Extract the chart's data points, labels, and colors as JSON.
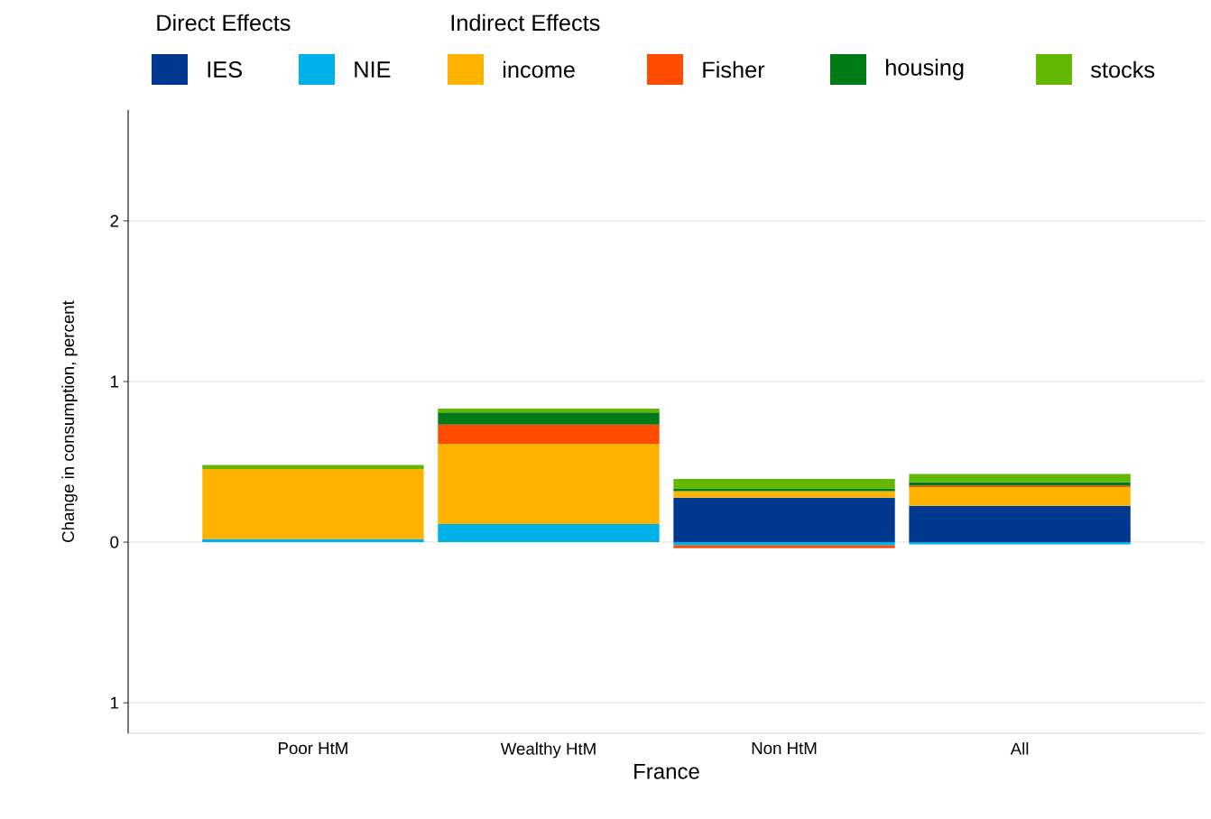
{
  "chart_data": {
    "type": "bar",
    "stacked": true,
    "xlabel": "France",
    "ylabel": "Change in consumption, percent",
    "annotations": [
      "Direct Effects",
      "Indirect Effects"
    ],
    "categories": [
      "Poor HtM",
      "Wealthy HtM",
      "Non HtM",
      "All"
    ],
    "series": [
      {
        "name": "IES",
        "color": "#00388f",
        "values": [
          0,
          0,
          0.277,
          0.226
        ]
      },
      {
        "name": "NIE",
        "color": "#00b1e9",
        "values": [
          0.02,
          0.112,
          -0.021,
          -0.014
        ]
      },
      {
        "name": "income",
        "color": "#ffb300",
        "values": [
          0.435,
          0.5,
          0.04,
          0.117
        ]
      },
      {
        "name": "Fisher",
        "color": "#ff4c00",
        "values": [
          0,
          0.12,
          -0.016,
          0.008
        ]
      },
      {
        "name": "housing",
        "color": "#007a17",
        "values": [
          0,
          0.075,
          0.018,
          0.023
        ]
      },
      {
        "name": "stocks",
        "color": "#63b700",
        "values": [
          0.025,
          0.025,
          0.058,
          0.05
        ]
      }
    ],
    "ylim": [
      -1.19,
      2.69
    ],
    "yticks": [
      {
        "value": -1,
        "label": "1"
      },
      0,
      1,
      2
    ],
    "grid": "y",
    "legend": "top"
  }
}
